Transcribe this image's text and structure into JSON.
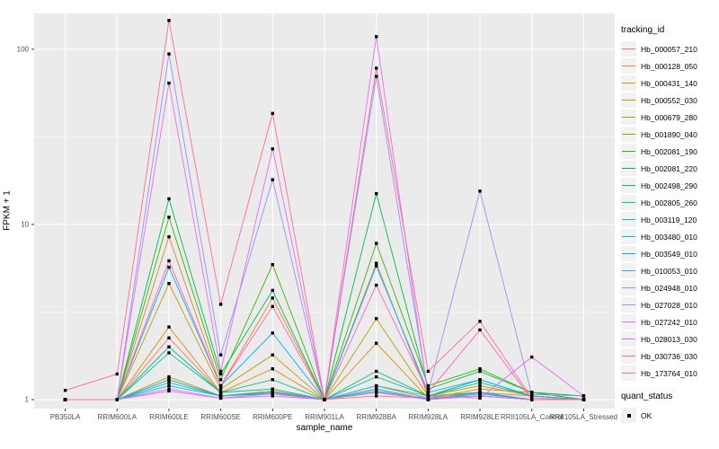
{
  "legend": {
    "tracking_title": "tracking_id",
    "quant_title": "quant_status",
    "quant_label": "OK"
  },
  "chart_data": {
    "type": "line",
    "title": "",
    "xlabel": "sample_name",
    "ylabel": "FPKM + 1",
    "y_scale": "log10",
    "ylim": [
      0.889,
      160
    ],
    "y_ticks": [
      1,
      10,
      100
    ],
    "y_minor_ticks": [
      3.162,
      31.62
    ],
    "grid": "on",
    "legend_position": "right",
    "point_shape": "filled-square",
    "point_color": "#000000",
    "panel_color": "#EBEBEB",
    "quant_status": "OK",
    "categories": [
      "PB350LA",
      "RRIM600LA",
      "RRIM600LE",
      "RRIM600SE",
      "RRIM600PE",
      "RRIM901LA",
      "RRIM928BA",
      "RRIM928LA",
      "RRIM928LE",
      "RRII105LA_Control",
      "RRII105LA_Stressed"
    ],
    "series": [
      {
        "name": "Hb_000057_210",
        "color": "#F8766D",
        "values": [
          1,
          1,
          2.25,
          1.1,
          1.15,
          1,
          1.05,
          1.02,
          1.05,
          1,
          1
        ]
      },
      {
        "name": "Hb_000128_050",
        "color": "#EA8331",
        "values": [
          1,
          1,
          8.5,
          1.2,
          3.8,
          1,
          6.0,
          1.05,
          1.1,
          1.05,
          1
        ]
      },
      {
        "name": "Hb_000431_140",
        "color": "#D89000",
        "values": [
          1,
          1,
          2.6,
          1.1,
          1.5,
          1,
          2.1,
          1.02,
          1.15,
          1.1,
          1
        ]
      },
      {
        "name": "Hb_000552_030",
        "color": "#C09B00",
        "values": [
          1,
          1,
          4.6,
          1.15,
          1.8,
          1,
          2.9,
          1.05,
          1.2,
          1.05,
          1
        ]
      },
      {
        "name": "Hb_000679_280",
        "color": "#A3A500",
        "values": [
          1,
          1,
          1.35,
          1.05,
          1.1,
          1,
          1.15,
          1,
          1.05,
          1,
          1
        ]
      },
      {
        "name": "Hb_001890_040",
        "color": "#7CAE00",
        "values": [
          1,
          1,
          1.3,
          1.05,
          1.12,
          1,
          1.2,
          1.05,
          1.1,
          1,
          1
        ]
      },
      {
        "name": "Hb_002081_190",
        "color": "#39B600",
        "values": [
          1,
          1,
          11,
          1.3,
          5.9,
          1,
          7.8,
          1.2,
          1.5,
          1.1,
          1
        ]
      },
      {
        "name": "Hb_002081_220",
        "color": "#00BB4E",
        "values": [
          1,
          1,
          14,
          1.4,
          4.2,
          1,
          15,
          1.15,
          1.45,
          1.1,
          1.05
        ]
      },
      {
        "name": "Hb_002498_290",
        "color": "#00BF7D",
        "values": [
          1,
          1,
          2.0,
          1.1,
          1.3,
          1,
          1.45,
          1.05,
          1.3,
          1.05,
          1
        ]
      },
      {
        "name": "Hb_002805_260",
        "color": "#00C1A3",
        "values": [
          1,
          1,
          1.85,
          1.1,
          1.15,
          1,
          1.35,
          1.05,
          1.25,
          1.05,
          1
        ]
      },
      {
        "name": "Hb_003119_120",
        "color": "#00BFC4",
        "values": [
          1,
          1,
          1.25,
          1.05,
          1.1,
          1,
          1.15,
          1,
          1.1,
          1,
          1
        ]
      },
      {
        "name": "Hb_003480_010",
        "color": "#00BBDA",
        "values": [
          1,
          1,
          1.2,
          1.05,
          1.08,
          1,
          1.12,
          1,
          1.08,
          1,
          1
        ]
      },
      {
        "name": "Hb_003549_010",
        "color": "#00B0F6",
        "values": [
          1,
          1,
          5.7,
          1.2,
          2.4,
          1,
          5.8,
          1.1,
          1.3,
          1.05,
          1
        ]
      },
      {
        "name": "Hb_010053_010",
        "color": "#35A2FF",
        "values": [
          1,
          1,
          1.3,
          1.05,
          1.1,
          1,
          1.2,
          1.02,
          1.1,
          1,
          1
        ]
      },
      {
        "name": "Hb_024948_010",
        "color": "#9590FF",
        "values": [
          1,
          1,
          94,
          1.8,
          18,
          1,
          70,
          1.1,
          15.5,
          1.07,
          1.05
        ]
      },
      {
        "name": "Hb_027028_010",
        "color": "#C77CFF",
        "values": [
          1,
          1,
          1.15,
          1.02,
          1.05,
          1,
          1.1,
          1,
          1.05,
          1,
          1
        ]
      },
      {
        "name": "Hb_027242_010",
        "color": "#E76BF3",
        "values": [
          1,
          1,
          64,
          1.45,
          27,
          1,
          118,
          1.05,
          1.02,
          1.75,
          1.05
        ]
      },
      {
        "name": "Hb_028013_030",
        "color": "#FA62DB",
        "values": [
          1,
          1,
          1.12,
          1.02,
          1.08,
          1,
          1.1,
          1.02,
          1.05,
          1,
          1
        ]
      },
      {
        "name": "Hb_030736_030",
        "color": "#FF62BC",
        "values": [
          1,
          1,
          6.2,
          1.2,
          3.4,
          1,
          4.5,
          1.1,
          2.5,
          1,
          1
        ]
      },
      {
        "name": "Hb_173764_010",
        "color": "#FF6A98",
        "values": [
          1.13,
          1.4,
          146,
          3.5,
          43,
          1,
          78,
          1.45,
          2.8,
          1.02,
          1
        ]
      }
    ]
  }
}
